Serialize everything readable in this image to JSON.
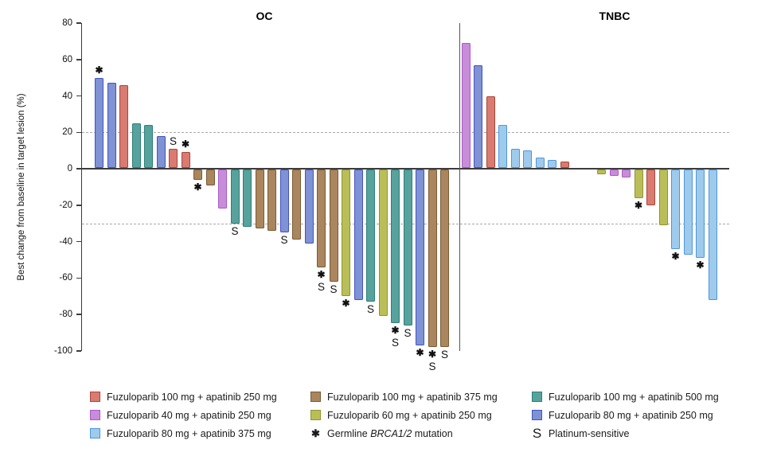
{
  "figure": {
    "panel_titles": {
      "left": "OC",
      "right": "TNBC"
    }
  },
  "chart_data": {
    "type": "bar",
    "subtype": "waterfall",
    "title": "",
    "xlabel": "",
    "ylabel": "Best change from baseline in target lesion (%)",
    "ylim": [
      -100,
      80
    ],
    "yticks": [
      80,
      60,
      40,
      20,
      0,
      -20,
      -40,
      -60,
      -80,
      -100
    ],
    "reference_lines": [
      20,
      -30
    ],
    "grid": false,
    "legend_position": "bottom",
    "panels": [
      {
        "title": "OC",
        "bars": [
          {
            "dose": "fz80_ap250",
            "value": 50,
            "marks": [
              "*"
            ]
          },
          {
            "dose": "fz80_ap250",
            "value": 47
          },
          {
            "dose": "fz100_ap250",
            "value": 46
          },
          {
            "dose": "fz100_ap500",
            "value": 25
          },
          {
            "dose": "fz100_ap500",
            "value": 24
          },
          {
            "dose": "fz80_ap250",
            "value": 18
          },
          {
            "dose": "fz100_ap250",
            "value": 11,
            "marks": [
              "S"
            ]
          },
          {
            "dose": "fz100_ap250",
            "value": 9,
            "marks": [
              "*"
            ]
          },
          {
            "dose": "fz100_ap375",
            "value": -6,
            "marks": [
              "*"
            ]
          },
          {
            "dose": "fz100_ap375",
            "value": -9
          },
          {
            "dose": "fz40_ap250",
            "value": -22
          },
          {
            "dose": "fz100_ap500",
            "value": -30,
            "marks": [
              "S"
            ]
          },
          {
            "dose": "fz100_ap500",
            "value": -32
          },
          {
            "dose": "fz100_ap375",
            "value": -33
          },
          {
            "dose": "fz100_ap375",
            "value": -34
          },
          {
            "dose": "fz80_ap250",
            "value": -35,
            "marks": [
              "S"
            ]
          },
          {
            "dose": "fz100_ap375",
            "value": -39
          },
          {
            "dose": "fz80_ap250",
            "value": -41
          },
          {
            "dose": "fz100_ap375",
            "value": -54,
            "marks": [
              "*",
              "S"
            ]
          },
          {
            "dose": "fz100_ap375",
            "value": -62,
            "marks": [
              "S"
            ]
          },
          {
            "dose": "fz60_ap250",
            "value": -70,
            "marks": [
              "*"
            ]
          },
          {
            "dose": "fz80_ap250",
            "value": -72
          },
          {
            "dose": "fz100_ap500",
            "value": -73,
            "marks": [
              "S"
            ]
          },
          {
            "dose": "fz60_ap250",
            "value": -81
          },
          {
            "dose": "fz100_ap500",
            "value": -85,
            "marks": [
              "*",
              "S"
            ]
          },
          {
            "dose": "fz100_ap500",
            "value": -86,
            "marks": [
              "S"
            ]
          },
          {
            "dose": "fz80_ap250",
            "value": -97,
            "marks": [
              "*"
            ]
          },
          {
            "dose": "fz100_ap375",
            "value": -98,
            "marks": [
              "*",
              "S"
            ]
          },
          {
            "dose": "fz100_ap375",
            "value": -98,
            "marks": [
              "S"
            ]
          }
        ]
      },
      {
        "title": "TNBC",
        "bars": [
          {
            "dose": "fz40_ap250",
            "value": 69
          },
          {
            "dose": "fz80_ap250",
            "value": 57
          },
          {
            "dose": "fz100_ap250",
            "value": 40
          },
          {
            "dose": "fz80_ap375",
            "value": 24
          },
          {
            "dose": "fz80_ap375",
            "value": 11
          },
          {
            "dose": "fz80_ap375",
            "value": 10
          },
          {
            "dose": "fz80_ap375",
            "value": 6
          },
          {
            "dose": "fz80_ap375",
            "value": 5
          },
          {
            "dose": "fz100_ap250",
            "value": 4
          },
          {
            "gap": true
          },
          {
            "gap": true
          },
          {
            "dose": "fz60_ap250",
            "value": -3
          },
          {
            "dose": "fz40_ap250",
            "value": -4
          },
          {
            "dose": "fz40_ap250",
            "value": -5
          },
          {
            "dose": "fz60_ap250",
            "value": -16,
            "marks": [
              "*"
            ]
          },
          {
            "dose": "fz100_ap250",
            "value": -20
          },
          {
            "dose": "fz60_ap250",
            "value": -31
          },
          {
            "dose": "fz80_ap375",
            "value": -44,
            "marks": [
              "*"
            ]
          },
          {
            "dose": "fz80_ap375",
            "value": -47
          },
          {
            "dose": "fz80_ap375",
            "value": -49,
            "marks": [
              "*"
            ]
          },
          {
            "dose": "fz80_ap375",
            "value": -72
          }
        ]
      }
    ]
  },
  "dose_colors": {
    "fz100_ap250": {
      "label": "Fuzuloparib 100 mg + apatinib 250 mg",
      "fill": "#d97b70",
      "border": "#ac4438"
    },
    "fz40_ap250": {
      "label": "Fuzuloparib 40 mg + apatinib 250 mg",
      "fill": "#c88dd9",
      "border": "#a958c8"
    },
    "fz80_ap375": {
      "label": "Fuzuloparib 80 mg + apatinib 375 mg",
      "fill": "#9ecaec",
      "border": "#4e96dc"
    },
    "fz100_ap375": {
      "label": "Fuzuloparib 100 mg + apatinib 375 mg",
      "fill": "#aa865e",
      "border": "#7b5a33"
    },
    "fz60_ap250": {
      "label": "Fuzuloparib 60 mg + apatinib 250 mg",
      "fill": "#babe58",
      "border": "#8f9430"
    },
    "fz100_ap500": {
      "label": "Fuzuloparib 100 mg + apatinib 500 mg",
      "fill": "#57a29c",
      "border": "#2b7f79"
    },
    "fz80_ap250": {
      "label": "Fuzuloparib 80 mg + apatinib 250 mg",
      "fill": "#7e92d4",
      "border": "#4253c4"
    }
  },
  "legend": {
    "columns": [
      [
        "fz100_ap250",
        "fz40_ap250",
        "fz80_ap375"
      ],
      [
        "fz100_ap375",
        "fz60_ap250"
      ],
      [
        "fz100_ap500",
        "fz80_ap250"
      ]
    ],
    "brca_note": {
      "symbol": "*",
      "text_pre": "Germline ",
      "text_italic": "BRCA1/2",
      "text_post": " mutation"
    },
    "platinum_note": {
      "symbol": "S",
      "text": "Platinum-sensitive"
    }
  }
}
